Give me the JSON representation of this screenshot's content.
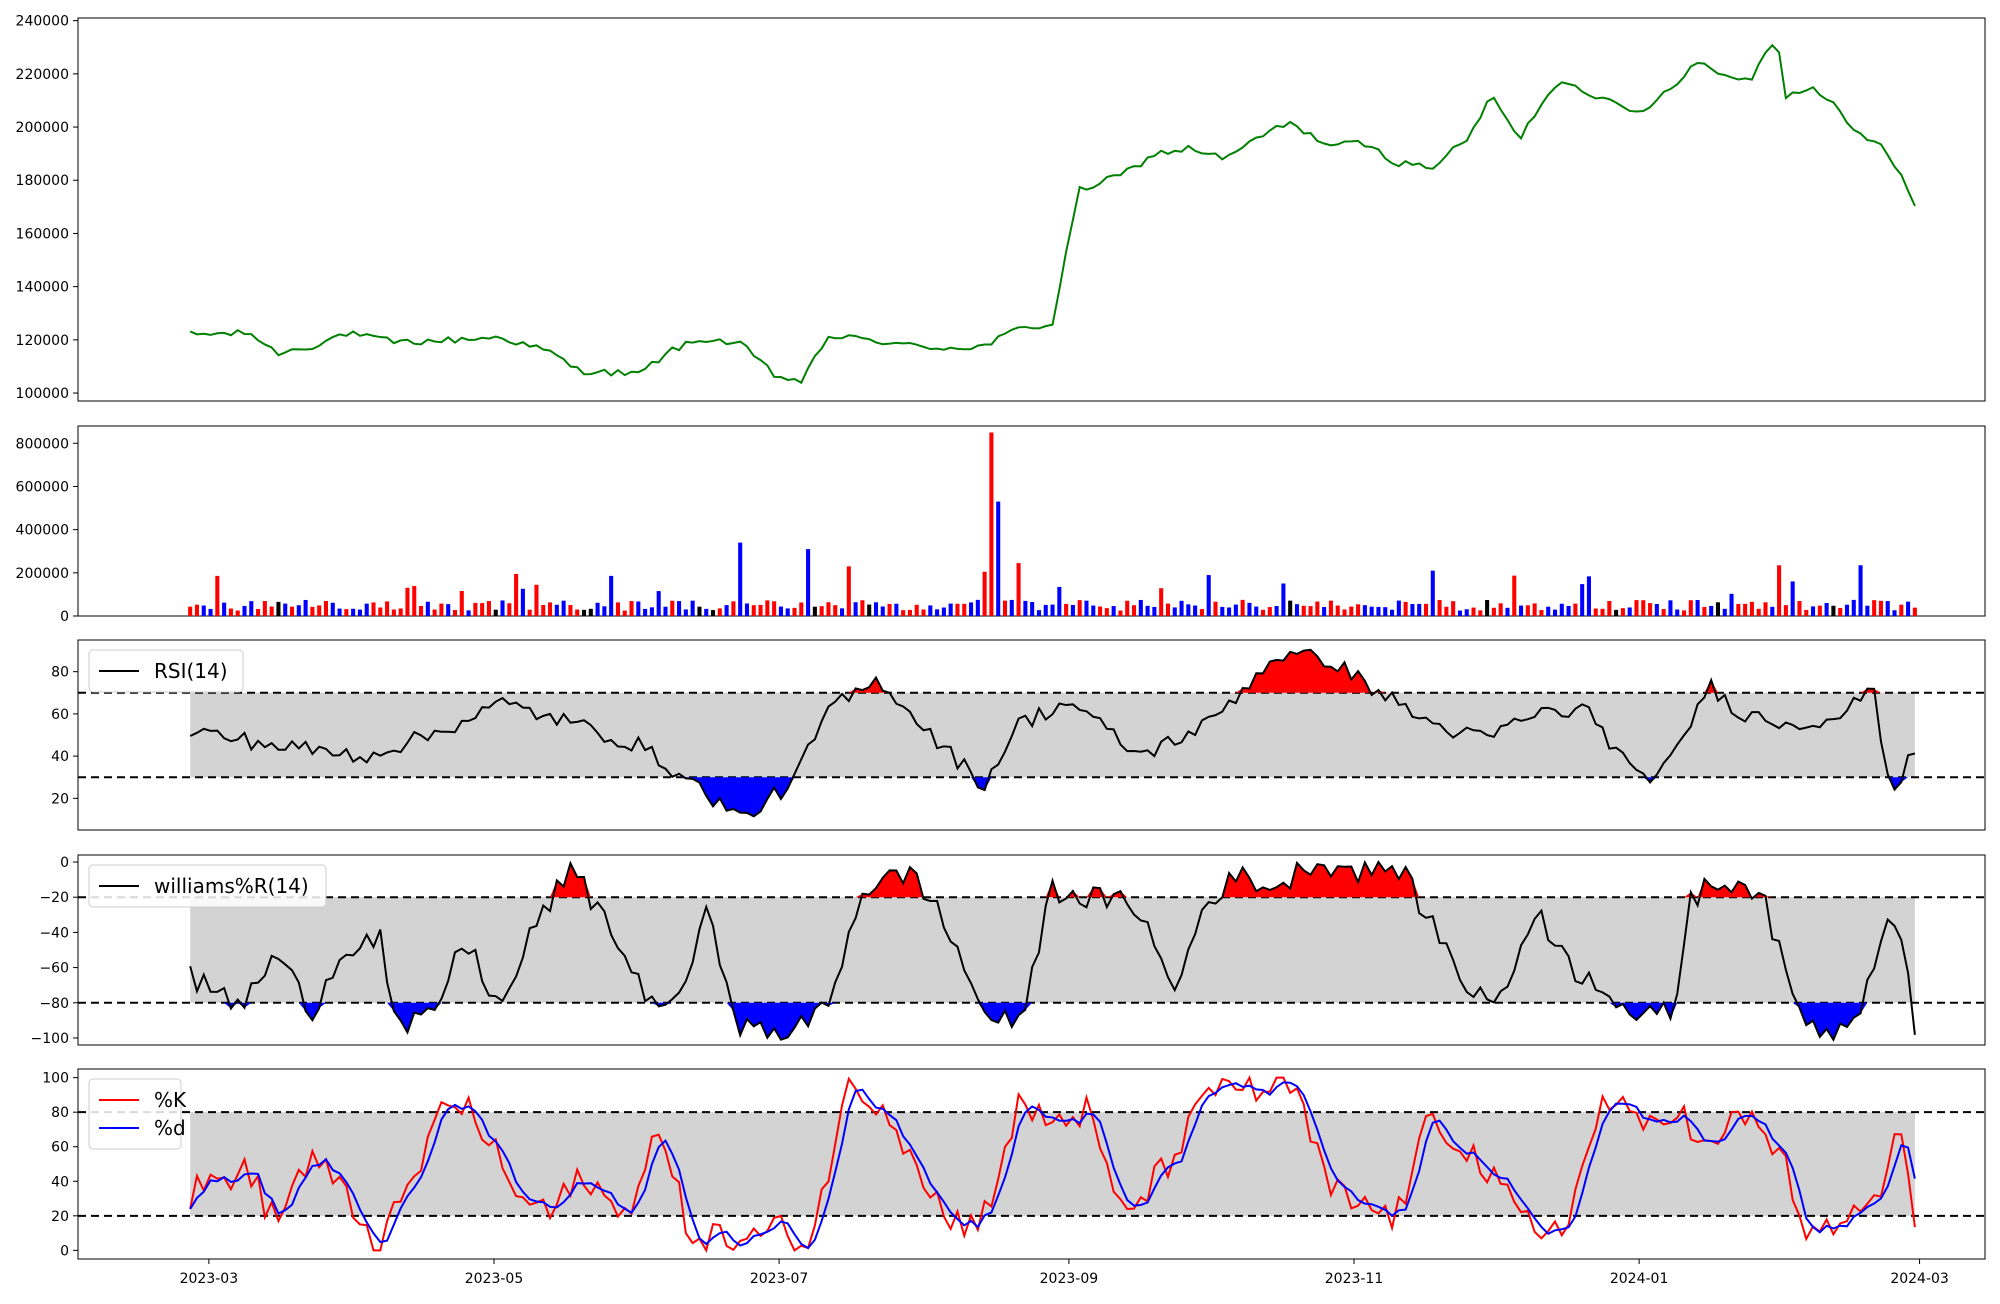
{
  "chart_data": [
    {
      "type": "line",
      "series": [
        {
          "color": "#008000",
          "x_range": [
            "2023-02-25",
            "2024-02-29"
          ],
          "y_start": 122000,
          "y_end": 171000
        }
      ],
      "y_ticks": [
        "240000",
        "220000",
        "200000",
        "180000",
        "160000",
        "140000",
        "120000",
        "100000"
      ],
      "ylim": [
        97000,
        241000
      ],
      "grid": false
    },
    {
      "type": "bar",
      "series_colors": {
        "up": "#ff0000",
        "down": "#0000ff",
        "flat": "#000000"
      },
      "peak_value": 850000,
      "y_ticks": [
        "800000",
        "600000",
        "400000",
        "200000",
        "0"
      ],
      "ylim": [
        0,
        880000
      ],
      "grid": false
    },
    {
      "type": "line",
      "legend": {
        "entries": [
          "RSI(14)"
        ],
        "placement": "upper-left"
      },
      "series": [
        {
          "name": "RSI(14)",
          "color": "#000000"
        }
      ],
      "bands": {
        "upper": 70,
        "lower": 30,
        "band_color": "#d3d3d3",
        "above_color": "#ff0000",
        "below_color": "#0000ff"
      },
      "y_ticks": [
        "80",
        "60",
        "40",
        "20"
      ],
      "ylim": [
        5,
        95
      ]
    },
    {
      "type": "line",
      "legend": {
        "entries": [
          "williams%R(14)"
        ],
        "placement": "upper-left"
      },
      "series": [
        {
          "name": "williams%R(14)",
          "color": "#000000"
        }
      ],
      "bands": {
        "upper": -20,
        "lower": -80,
        "band_color": "#d3d3d3",
        "above_color": "#ff0000",
        "below_color": "#0000ff"
      },
      "y_ticks": [
        "0",
        "−20",
        "−40",
        "−60",
        "−80",
        "−100"
      ],
      "ylim": [
        -104,
        4
      ]
    },
    {
      "type": "line",
      "legend": {
        "entries": [
          "%K",
          "%d"
        ],
        "placement": "upper-left"
      },
      "series": [
        {
          "name": "%K",
          "color": "#ff0000"
        },
        {
          "name": "%d",
          "color": "#0000ff"
        }
      ],
      "bands": {
        "upper": 80,
        "lower": 20,
        "band_color": "#d3d3d3"
      },
      "y_ticks": [
        "100",
        "80",
        "60",
        "40",
        "20",
        "0"
      ],
      "ylim": [
        -5,
        105
      ],
      "x_ticks": [
        "2023-03",
        "2023-05",
        "2023-07",
        "2023-09",
        "2023-11",
        "2024-01",
        "2024-03"
      ]
    }
  ]
}
